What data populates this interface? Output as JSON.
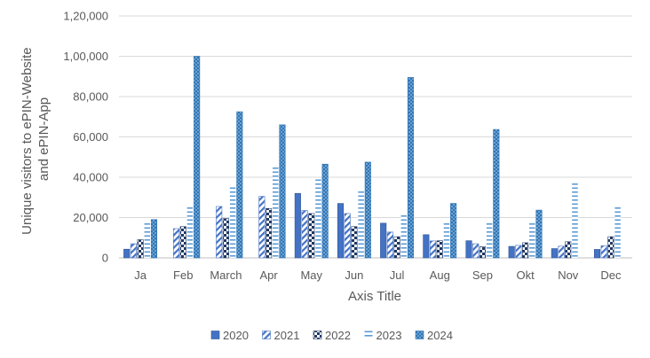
{
  "chart_data": {
    "type": "bar",
    "title": "",
    "xlabel": "Axis Title",
    "ylabel_lines": [
      "Unique visitors to ePIN-Website",
      "and ePIN-App"
    ],
    "ylim": [
      0,
      120000
    ],
    "yticks": [
      0,
      20000,
      40000,
      60000,
      80000,
      100000,
      120000
    ],
    "ytick_labels": [
      "0",
      "20,000",
      "40,000",
      "60,000",
      "80,000",
      "1,00,000",
      "1,20,000"
    ],
    "grid": true,
    "legend_position": "bottom",
    "categories": [
      "Ja",
      "Feb",
      "March",
      "Apr",
      "May",
      "Jun",
      "Jul",
      "Aug",
      "Sep",
      "Okt",
      "Nov",
      "Dec"
    ],
    "series": [
      {
        "name": "2020",
        "pattern": "solid",
        "values": [
          4300,
          0,
          0,
          0,
          32000,
          27000,
          17200,
          11500,
          8500,
          5700,
          4600,
          4200
        ]
      },
      {
        "name": "2021",
        "pattern": "diagonal",
        "values": [
          7000,
          14500,
          25500,
          30500,
          23500,
          22000,
          12800,
          8400,
          7000,
          6200,
          5800,
          6000
        ]
      },
      {
        "name": "2022",
        "pattern": "checker",
        "values": [
          9000,
          15500,
          19500,
          24500,
          22000,
          15500,
          10500,
          8500,
          5500,
          7500,
          8000,
          10500
        ]
      },
      {
        "name": "2023",
        "pattern": "horizontal",
        "values": [
          17500,
          26000,
          35000,
          46000,
          39500,
          33000,
          22000,
          17500,
          17500,
          17500,
          37000,
          26000
        ]
      },
      {
        "name": "2024",
        "pattern": "dots",
        "values": [
          19000,
          100000,
          72500,
          66000,
          46500,
          47500,
          89500,
          27000,
          63700,
          23700,
          0,
          0
        ]
      }
    ]
  }
}
